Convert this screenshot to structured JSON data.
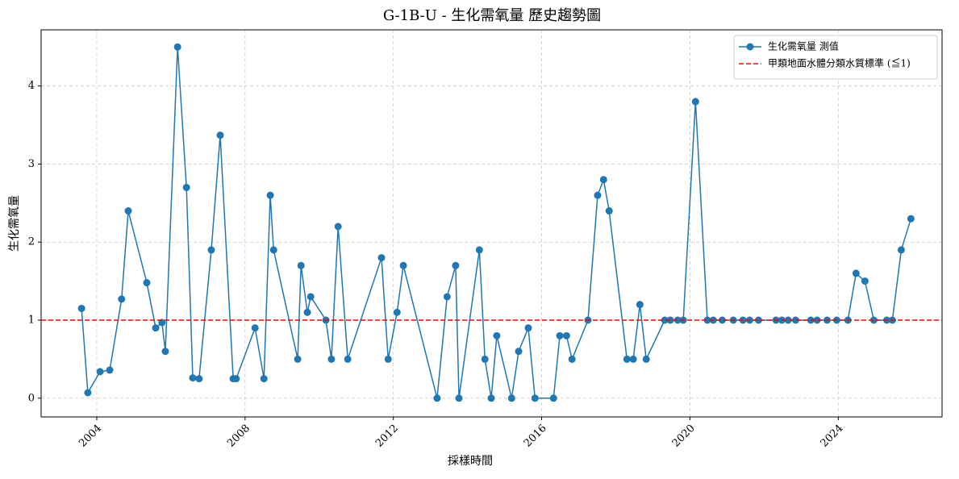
{
  "chart_data": {
    "type": "line",
    "title": "G-1B-U - 生化需氧量 歷史趨勢圖",
    "xlabel": "採樣時間",
    "ylabel": "生化需氧量",
    "x": [
      2003.59,
      2003.76,
      2004.09,
      2004.35,
      2004.67,
      2004.85,
      2005.35,
      2005.59,
      2005.76,
      2005.85,
      2006.18,
      2006.42,
      2006.59,
      2006.76,
      2007.09,
      2007.33,
      2007.68,
      2007.76,
      2008.27,
      2008.51,
      2008.68,
      2008.77,
      2009.42,
      2009.51,
      2009.68,
      2009.77,
      2010.18,
      2010.33,
      2010.51,
      2010.77,
      2011.68,
      2011.86,
      2012.1,
      2012.27,
      2013.18,
      2013.45,
      2013.68,
      2013.77,
      2014.32,
      2014.47,
      2014.64,
      2014.79,
      2015.19,
      2015.38,
      2015.64,
      2015.82,
      2016.32,
      2016.49,
      2016.67,
      2016.82,
      2017.25,
      2017.51,
      2017.67,
      2017.82,
      2018.3,
      2018.47,
      2018.65,
      2018.82,
      2019.32,
      2019.47,
      2019.67,
      2019.82,
      2020.15,
      2020.47,
      2020.63,
      2020.87,
      2021.17,
      2021.43,
      2021.61,
      2021.85,
      2022.32,
      2022.48,
      2022.65,
      2022.85,
      2023.26,
      2023.43,
      2023.7,
      2023.96,
      2024.26,
      2024.48,
      2024.72,
      2024.96,
      2025.31,
      2025.46,
      2025.7,
      2025.96
    ],
    "series": [
      {
        "name": "生化需氧量 測值",
        "color": "#1f77b4",
        "values": [
          1.15,
          0.07,
          0.34,
          0.36,
          1.27,
          2.4,
          1.48,
          0.9,
          0.97,
          0.6,
          4.5,
          2.7,
          0.26,
          0.25,
          1.9,
          3.37,
          0.25,
          0.25,
          0.9,
          0.25,
          2.6,
          1.9,
          0.5,
          1.7,
          1.1,
          1.3,
          1.0,
          0.5,
          2.2,
          0.5,
          1.8,
          0.5,
          1.1,
          1.7,
          0,
          1.3,
          1.7,
          0,
          1.9,
          0.5,
          0,
          0.8,
          0,
          0.6,
          0.9,
          0,
          0,
          0.8,
          0.8,
          0.5,
          1.0,
          2.6,
          2.8,
          2.4,
          0.5,
          0.5,
          1.2,
          0.5,
          1,
          1,
          1,
          1,
          3.8,
          1,
          1,
          1,
          1,
          1,
          1,
          1,
          1,
          1,
          1,
          1,
          1,
          1,
          1,
          1,
          1,
          1.6,
          1.5,
          1,
          1,
          1,
          1.9,
          2.3
        ]
      }
    ],
    "threshold": {
      "name": "甲類地面水體分類水質標準 (≦1)",
      "value": 1,
      "color": "#ff0000"
    },
    "xlim": [
      2002.5,
      2026.8
    ],
    "xticks": [
      2004,
      2008,
      2012,
      2016,
      2020,
      2024
    ],
    "ylim": [
      -0.24,
      4.72
    ],
    "yticks": [
      0,
      1,
      2,
      3,
      4
    ],
    "grid": true,
    "legend": "upper right"
  }
}
